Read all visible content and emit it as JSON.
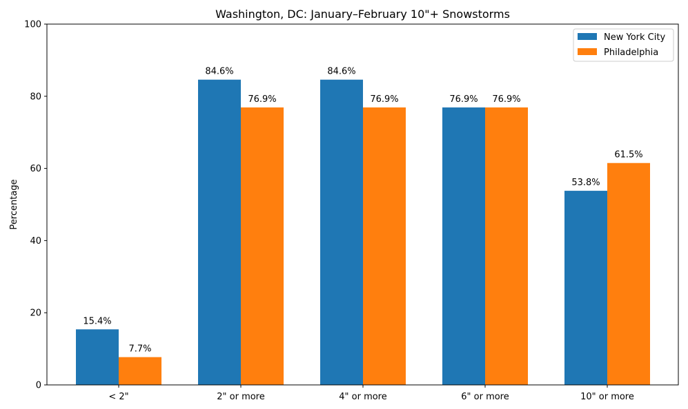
{
  "chart_data": {
    "type": "bar",
    "title": "Washington, DC: January–February 10\"+ Snowstorms",
    "xlabel": "",
    "ylabel": "Percentage",
    "ylim": [
      0,
      100
    ],
    "yticks": [
      0,
      20,
      40,
      60,
      80,
      100
    ],
    "categories": [
      "< 2\"",
      "2\" or more",
      "4\" or more",
      "6\" or more",
      "10\" or more"
    ],
    "series": [
      {
        "name": "New York City",
        "color": "#1f77b4",
        "values": [
          15.4,
          84.6,
          84.6,
          76.9,
          53.8
        ],
        "labels": [
          "15.4%",
          "84.6%",
          "84.6%",
          "76.9%",
          "53.8%"
        ]
      },
      {
        "name": "Philadelphia",
        "color": "#ff7f0e",
        "values": [
          7.7,
          76.9,
          76.9,
          76.9,
          61.5
        ],
        "labels": [
          "7.7%",
          "76.9%",
          "76.9%",
          "76.9%",
          "61.5%"
        ]
      }
    ],
    "legend": "top-right",
    "grid": false
  }
}
